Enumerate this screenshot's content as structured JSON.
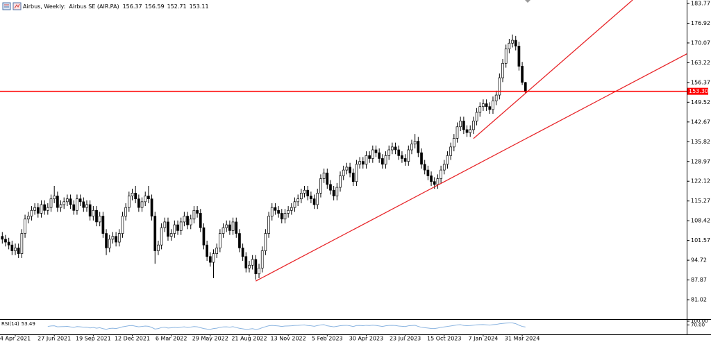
{
  "chart_data": {
    "type": "candlestick",
    "symbol": "Airbus, Weekly:",
    "description": "Airbus SE (AIR.PA)",
    "categories": [
      null,
      null,
      null,
      null,
      "4 Apr 2021",
      null,
      null,
      null,
      null,
      null,
      null,
      null,
      null,
      null,
      null,
      null,
      "27 Jun 2021",
      null,
      null,
      null,
      null,
      null,
      null,
      null,
      null,
      null,
      null,
      null,
      "19 Sep 2021",
      null,
      null,
      null,
      null,
      null,
      null,
      null,
      null,
      null,
      null,
      null,
      "12 Dec 2021",
      null,
      null,
      null,
      null,
      null,
      null,
      null,
      null,
      null,
      null,
      null,
      "6 Mar 2022",
      null,
      null,
      null,
      null,
      null,
      null,
      null,
      null,
      null,
      null,
      null,
      "29 May 2022",
      null,
      null,
      null,
      null,
      null,
      null,
      null,
      null,
      null,
      null,
      null,
      "21 Aug 2022",
      null,
      null,
      null,
      null,
      null,
      null,
      null,
      null,
      null,
      null,
      null,
      "13 Nov 2022",
      null,
      null,
      null,
      null,
      null,
      null,
      null,
      null,
      null,
      null,
      null,
      "5 Feb 2023",
      null,
      null,
      null,
      null,
      null,
      null,
      null,
      null,
      null,
      null,
      null,
      "30 Apr 2023",
      null,
      null,
      null,
      null,
      null,
      null,
      null,
      null,
      null,
      null,
      null,
      "23 Jul 2023",
      null,
      null,
      null,
      null,
      null,
      null,
      null,
      null,
      null,
      null,
      null,
      "15 Oct 2023",
      null,
      null,
      null,
      null,
      null,
      null,
      null,
      null,
      null,
      null,
      null,
      "7 Jan 2024",
      null,
      null,
      null,
      null,
      null,
      null,
      null,
      null,
      null,
      null,
      null,
      "31 Mar 2024",
      null
    ],
    "open": [
      103,
      102,
      101,
      100,
      98,
      99,
      97,
      104,
      109,
      110,
      112,
      113,
      111,
      114,
      112,
      113,
      116,
      117,
      113,
      114,
      115,
      116,
      114,
      112,
      116,
      115,
      113,
      114,
      110,
      112,
      108,
      110,
      104,
      99,
      102,
      103,
      101,
      104,
      110,
      113,
      117,
      118,
      116,
      113,
      115,
      117,
      116,
      110,
      98,
      100,
      106,
      108,
      103,
      104,
      107,
      105,
      108,
      110,
      107,
      109,
      112,
      111,
      106,
      100,
      96,
      94,
      97,
      99,
      104,
      106,
      107,
      105,
      108,
      104,
      99,
      96,
      92,
      93,
      95,
      90,
      92,
      98,
      104,
      110,
      113,
      112,
      111,
      109,
      111,
      112,
      113,
      115,
      116,
      118,
      119,
      117,
      116,
      114,
      118,
      123,
      125,
      121,
      119,
      117,
      120,
      124,
      126,
      127,
      125,
      122,
      128,
      129,
      128,
      131,
      130,
      133,
      132,
      130,
      128,
      131,
      133,
      134,
      133,
      131,
      130,
      129,
      133,
      135,
      136,
      132,
      128,
      126,
      124,
      122,
      121,
      123,
      126,
      128,
      131,
      134,
      137,
      141,
      143,
      140,
      139,
      140,
      143,
      146,
      148,
      149,
      148,
      147,
      150,
      152,
      158,
      163,
      168,
      170,
      171,
      169,
      162,
      156.37
    ],
    "high": [
      104.5,
      103.5,
      102.5,
      101.5,
      100.5,
      100.5,
      105.5,
      110.5,
      111.5,
      113.5,
      114.5,
      114.5,
      115.5,
      115.5,
      114.5,
      117.5,
      120.5,
      118.5,
      115.5,
      116.5,
      117.5,
      117.5,
      115.5,
      117.5,
      117.5,
      116.5,
      115.5,
      115.5,
      113.5,
      113.5,
      111.5,
      111.5,
      105.5,
      103.5,
      104.5,
      104.5,
      105.5,
      111.5,
      114.5,
      118.5,
      119.5,
      120.5,
      117.5,
      116.5,
      118.5,
      120.5,
      117.5,
      111.5,
      101.5,
      107.5,
      109.5,
      109.5,
      105.5,
      108.5,
      108.5,
      109.5,
      111.5,
      111.5,
      110.5,
      113.5,
      113.5,
      112.5,
      107.5,
      101.5,
      97.5,
      98.5,
      100.5,
      105.5,
      107.5,
      108.5,
      108.5,
      109.5,
      109.5,
      105.5,
      100.5,
      97.5,
      94.5,
      96.5,
      96.5,
      93.5,
      99.5,
      105.5,
      111.5,
      114.5,
      114.5,
      113.5,
      112.5,
      112.5,
      113.5,
      114.5,
      116.5,
      117.5,
      119.5,
      120.5,
      120.5,
      118.5,
      117.5,
      119.5,
      124.5,
      126.5,
      126.5,
      122.5,
      120.5,
      121.5,
      125.5,
      127.5,
      128.5,
      128.5,
      126.5,
      129.5,
      130.5,
      130.5,
      132.5,
      132.5,
      134.5,
      134.5,
      133.5,
      131.5,
      132.5,
      134.5,
      135.5,
      135.5,
      134.5,
      132.5,
      131.5,
      134.5,
      136.5,
      138.5,
      137.5,
      133.5,
      129.5,
      127.5,
      125.5,
      123.5,
      124.5,
      127.5,
      129.5,
      132.5,
      135.5,
      138.5,
      142.5,
      144.5,
      144.5,
      141.5,
      141.5,
      144.5,
      147.5,
      149.5,
      150.5,
      150.5,
      149.5,
      151.5,
      153.5,
      159.5,
      164.5,
      169.5,
      171.5,
      173,
      172.5,
      170.5,
      163.5,
      156.59
    ],
    "low": [
      100.5,
      99.5,
      98.5,
      96.5,
      96.5,
      95.5,
      95.5,
      102.5,
      107.5,
      108.5,
      110.5,
      109.5,
      109.5,
      110.5,
      110.5,
      111.5,
      114.5,
      111.5,
      111.5,
      112.5,
      113.5,
      112.5,
      110.5,
      110.5,
      113.5,
      111.5,
      111.5,
      108.5,
      108.5,
      106.5,
      106.5,
      102.5,
      96.5,
      97.5,
      100.5,
      99.5,
      99.5,
      102.5,
      108.5,
      111.5,
      115.5,
      114.5,
      111.5,
      111.5,
      113.5,
      114.5,
      108.5,
      93.5,
      96.5,
      98.5,
      104.5,
      101.5,
      101.5,
      102.5,
      103.5,
      103.5,
      106.5,
      105.5,
      105.5,
      107.5,
      109.5,
      104.5,
      98.5,
      94.5,
      92.5,
      88.5,
      95.5,
      97.5,
      102.5,
      104.5,
      103.5,
      103.5,
      102.5,
      97.5,
      94.5,
      90.5,
      90.5,
      91.5,
      88,
      88.5,
      90.5,
      96.5,
      102.5,
      108.5,
      110.5,
      109.5,
      107.5,
      107.5,
      109.5,
      110.5,
      111.5,
      113.5,
      114.5,
      116.5,
      115.5,
      114.5,
      112.5,
      112.5,
      116.5,
      121.5,
      119.5,
      117.5,
      115.5,
      115.5,
      118.5,
      122.5,
      124.5,
      123.5,
      120.5,
      120.5,
      126.5,
      126.5,
      126.5,
      128.5,
      128.5,
      130.5,
      128.5,
      126.5,
      126.5,
      129.5,
      131.5,
      131.5,
      129.5,
      128.5,
      127.5,
      127.5,
      131.5,
      133.5,
      130.5,
      126.5,
      124.5,
      122.5,
      120.5,
      119.5,
      119.5,
      121.5,
      124.5,
      126.5,
      129.5,
      132.5,
      135.5,
      139.5,
      138.5,
      137.5,
      137.5,
      138.5,
      141.5,
      144.5,
      146.5,
      146.5,
      145.5,
      145.5,
      148.5,
      150.5,
      156.5,
      161.5,
      166.5,
      168.5,
      167.5,
      160.5,
      155.5,
      152.71
    ],
    "close": [
      102,
      101,
      100,
      98,
      99,
      97,
      104,
      109,
      110,
      112,
      113,
      111,
      114,
      112,
      113,
      116,
      117,
      113,
      114,
      115,
      116,
      114,
      112,
      116,
      115,
      113,
      114,
      110,
      112,
      108,
      110,
      104,
      99,
      102,
      103,
      101,
      104,
      110,
      113,
      117,
      118,
      116,
      113,
      115,
      117,
      116,
      110,
      98,
      100,
      106,
      108,
      103,
      104,
      107,
      105,
      108,
      110,
      107,
      109,
      112,
      111,
      106,
      100,
      96,
      94,
      97,
      99,
      104,
      106,
      107,
      105,
      108,
      104,
      99,
      96,
      92,
      93,
      95,
      90,
      92,
      98,
      104,
      110,
      113,
      112,
      111,
      109,
      111,
      112,
      113,
      115,
      116,
      118,
      119,
      117,
      116,
      114,
      118,
      123,
      125,
      121,
      119,
      117,
      120,
      124,
      126,
      127,
      125,
      122,
      128,
      129,
      128,
      131,
      130,
      133,
      132,
      130,
      128,
      131,
      133,
      134,
      133,
      131,
      130,
      129,
      133,
      135,
      136,
      132,
      128,
      126,
      124,
      122,
      121,
      123,
      126,
      128,
      131,
      134,
      137,
      141,
      143,
      140,
      139,
      140,
      143,
      146,
      148,
      149,
      148,
      147,
      150,
      152,
      158,
      163,
      168,
      170,
      171,
      169,
      162,
      156.4,
      153.11
    ],
    "ylim": [
      74.54,
      184.97
    ],
    "yticks": [
      183.77,
      176.92,
      170.07,
      163.22,
      156.37,
      149.52,
      142.67,
      135.82,
      128.97,
      122.12,
      115.27,
      108.42,
      101.57,
      94.72,
      87.87,
      81.02
    ],
    "up_color": "#ffffff",
    "down_color": "#000000",
    "hline": {
      "value": 153.3,
      "label": "153.30",
      "color": "#ff0000"
    },
    "lines": [
      {
        "start_index": 78,
        "start_price": 87.5,
        "end_index": 211,
        "end_price": 166.5,
        "color": "#e8262a"
      },
      {
        "start_index": 145,
        "start_price": 136.9,
        "end_index": 194,
        "end_price": 185,
        "color": "#e8262a"
      }
    ],
    "rsi": {
      "name": "RSI(14)",
      "color": "#8ab4e0",
      "ylim": [
        0,
        100
      ],
      "yticks": [
        {
          "value": 100,
          "label": "100.00"
        },
        {
          "value": 70,
          "label": "70.00"
        }
      ],
      "values": [
        null,
        null,
        null,
        null,
        null,
        null,
        null,
        null,
        null,
        null,
        null,
        null,
        null,
        null,
        58,
        62,
        63,
        55,
        56,
        57,
        58,
        54,
        51,
        57,
        55,
        52,
        53,
        46,
        50,
        44,
        48,
        40,
        35,
        42,
        44,
        41,
        47,
        55,
        59,
        64,
        65,
        60,
        55,
        58,
        61,
        59,
        50,
        37,
        41,
        49,
        52,
        45,
        47,
        51,
        48,
        52,
        55,
        50,
        53,
        57,
        55,
        48,
        41,
        37,
        35,
        41,
        44,
        51,
        54,
        55,
        52,
        56,
        49,
        43,
        39,
        35,
        37,
        40,
        34,
        38,
        48,
        56,
        63,
        66,
        64,
        62,
        58,
        61,
        62,
        63,
        66,
        67,
        69,
        70,
        65,
        63,
        59,
        65,
        70,
        72,
        63,
        59,
        55,
        59,
        64,
        66,
        67,
        63,
        57,
        65,
        66,
        64,
        67,
        65,
        68,
        66,
        62,
        58,
        63,
        66,
        67,
        65,
        61,
        59,
        57,
        63,
        65,
        67,
        58,
        51,
        48,
        45,
        42,
        41,
        45,
        51,
        54,
        58,
        62,
        66,
        70,
        72,
        66,
        64,
        65,
        68,
        71,
        72,
        73,
        71,
        69,
        72,
        74,
        79,
        82,
        85,
        86,
        86,
        80,
        68,
        58,
        53.49
      ]
    }
  }
}
